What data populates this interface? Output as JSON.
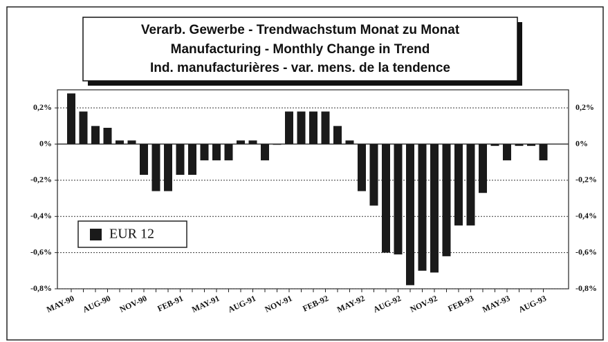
{
  "chart_data": {
    "type": "bar",
    "title": [
      "Verarb. Gewerbe - Trendwachstum Monat zu Monat",
      "Manufacturing - Monthly Change in Trend",
      "Ind. manufacturières - var. mens. de la tendence"
    ],
    "categories": [
      "MAY-90",
      null,
      null,
      "AUG-90",
      null,
      null,
      "NOV-90",
      null,
      null,
      "FEB-91",
      null,
      null,
      "MAY-91",
      null,
      null,
      "AUG-91",
      null,
      null,
      "NOV-91",
      null,
      null,
      "FEB-92",
      null,
      null,
      "MAY-92",
      null,
      null,
      "AUG-92",
      null,
      null,
      "NOV-92",
      null,
      null,
      "FEB-93",
      null,
      null,
      "MAY-93",
      null,
      null,
      "AUG-93"
    ],
    "series": [
      {
        "name": "EUR 12",
        "color": "#1a1a1a",
        "values": [
          0.28,
          0.18,
          0.1,
          0.09,
          0.02,
          0.02,
          -0.17,
          -0.26,
          -0.26,
          -0.17,
          -0.17,
          -0.09,
          -0.09,
          -0.09,
          0.02,
          0.02,
          -0.09,
          0,
          0.18,
          0.18,
          0.18,
          0.18,
          0.1,
          0.02,
          -0.26,
          -0.34,
          -0.6,
          -0.61,
          -0.78,
          -0.7,
          -0.71,
          -0.62,
          -0.45,
          -0.45,
          -0.27,
          -0.01,
          -0.09,
          -0.01,
          -0.01,
          -0.09
        ]
      }
    ],
    "ylim": [
      -0.8,
      0.3
    ],
    "yticks": [
      {
        "value": 0.2,
        "label": "0,2%"
      },
      {
        "value": 0,
        "label": "0%"
      },
      {
        "value": -0.2,
        "label": "-0,2%"
      },
      {
        "value": -0.4,
        "label": "-0,4%"
      },
      {
        "value": -0.6,
        "label": "-0,6%"
      },
      {
        "value": -0.8,
        "label": "-0,8%"
      }
    ],
    "grid": true
  }
}
